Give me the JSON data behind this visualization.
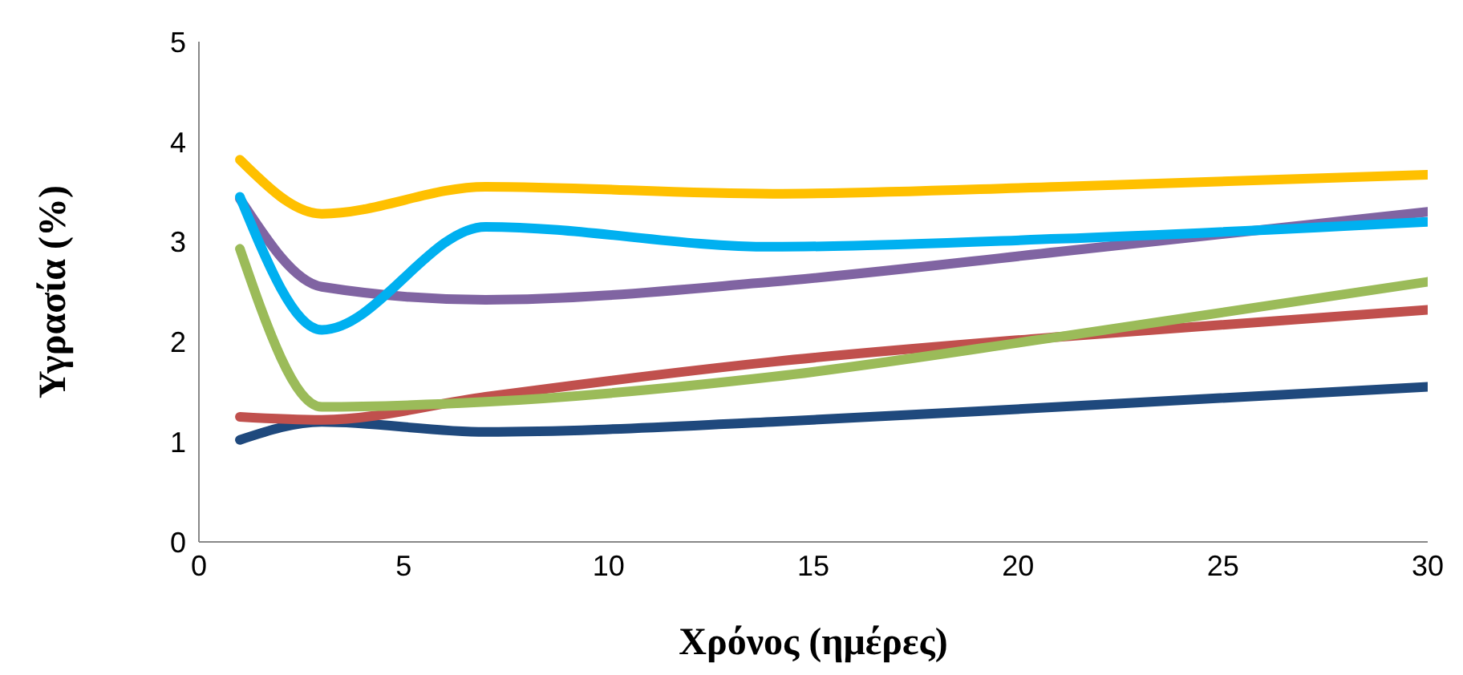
{
  "chart_data": {
    "type": "line",
    "xlabel": "Χρόνος (ημέρες)",
    "ylabel": "Υγρασία (%)",
    "x": [
      1,
      3,
      7,
      14,
      21,
      30
    ],
    "xlim": [
      0,
      30
    ],
    "xticks": [
      0,
      5,
      10,
      15,
      20,
      25,
      30
    ],
    "ylim": [
      0,
      5
    ],
    "yticks": [
      0,
      1,
      2,
      3,
      4,
      5
    ],
    "grid": false,
    "legend": false,
    "marker": "none",
    "line_style": "solid",
    "series": [
      {
        "color": "#1f497d",
        "values": [
          1.02,
          1.2,
          1.1,
          1.2,
          1.35,
          1.55
        ]
      },
      {
        "color": "#c0504d",
        "values": [
          1.25,
          1.22,
          1.45,
          1.8,
          2.05,
          2.32
        ]
      },
      {
        "color": "#9bbb59",
        "values": [
          2.93,
          1.35,
          1.4,
          1.65,
          2.05,
          2.6
        ]
      },
      {
        "color": "#8064a2",
        "values": [
          3.43,
          2.55,
          2.42,
          2.6,
          2.9,
          3.3
        ]
      },
      {
        "color": "#00b0f0",
        "values": [
          3.45,
          2.12,
          3.15,
          2.95,
          3.03,
          3.2
        ]
      },
      {
        "color": "#ffc000",
        "values": [
          3.82,
          3.28,
          3.55,
          3.48,
          3.55,
          3.67
        ]
      }
    ]
  }
}
